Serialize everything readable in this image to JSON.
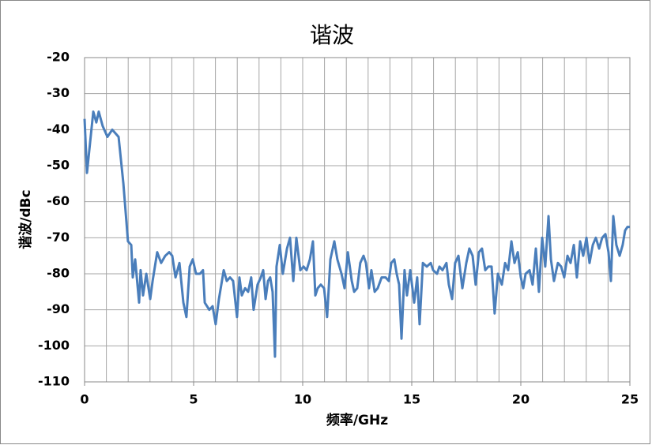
{
  "chart_data": {
    "type": "line",
    "title": "谐波",
    "x_label": "频率/GHz",
    "y_label": "谐波/dBc",
    "x": [
      0,
      0.11,
      0.4,
      0.54,
      0.65,
      0.83,
      1.05,
      1.27,
      1.56,
      1.78,
      1.99,
      2.14,
      2.21,
      2.32,
      2.5,
      2.57,
      2.68,
      2.83,
      3.01,
      3.12,
      3.33,
      3.51,
      3.7,
      3.88,
      4.02,
      4.17,
      4.35,
      4.53,
      4.67,
      4.82,
      4.96,
      5.11,
      5.29,
      5.43,
      5.51,
      5.72,
      5.87,
      6.01,
      6.16,
      6.38,
      6.52,
      6.67,
      6.81,
      6.99,
      7.1,
      7.21,
      7.36,
      7.5,
      7.64,
      7.75,
      7.93,
      8.08,
      8.19,
      8.3,
      8.41,
      8.51,
      8.62,
      8.73,
      8.8,
      8.95,
      9.09,
      9.28,
      9.42,
      9.57,
      9.71,
      9.89,
      10.04,
      10.18,
      10.33,
      10.47,
      10.58,
      10.69,
      10.83,
      10.98,
      11.12,
      11.27,
      11.45,
      11.59,
      11.78,
      11.92,
      12.07,
      12.25,
      12.36,
      12.5,
      12.64,
      12.79,
      12.9,
      13.04,
      13.15,
      13.3,
      13.44,
      13.62,
      13.8,
      13.95,
      14.06,
      14.2,
      14.31,
      14.42,
      14.53,
      14.67,
      14.78,
      14.93,
      15.11,
      15.25,
      15.36,
      15.51,
      15.69,
      15.87,
      15.98,
      16.16,
      16.27,
      16.41,
      16.59,
      16.7,
      16.85,
      16.99,
      17.14,
      17.32,
      17.5,
      17.64,
      17.79,
      17.93,
      18.08,
      18.22,
      18.37,
      18.51,
      18.66,
      18.8,
      18.95,
      19.13,
      19.28,
      19.42,
      19.57,
      19.71,
      19.86,
      20,
      20.11,
      20.22,
      20.4,
      20.54,
      20.69,
      20.83,
      20.98,
      21.12,
      21.27,
      21.38,
      21.52,
      21.7,
      21.85,
      21.99,
      22.14,
      22.28,
      22.43,
      22.57,
      22.72,
      22.86,
      23.01,
      23.15,
      23.3,
      23.44,
      23.59,
      23.73,
      23.88,
      24.02,
      24.13,
      24.24,
      24.38,
      24.53,
      24.67,
      24.78,
      24.89,
      25
    ],
    "series": [
      {
        "color": "#4a7ebb",
        "values": [
          -37,
          -52,
          -35,
          -38,
          -35,
          -39,
          -42,
          -40,
          -42,
          -55,
          -71,
          -72,
          -81,
          -76,
          -88,
          -79,
          -86,
          -80,
          -87,
          -82,
          -74,
          -77,
          -75,
          -74,
          -75,
          -81,
          -77,
          -88,
          -92,
          -78,
          -76,
          -80,
          -80,
          -79,
          -88,
          -90,
          -89,
          -94,
          -87,
          -79,
          -82,
          -81,
          -82,
          -92,
          -81,
          -86,
          -84,
          -85,
          -81,
          -90,
          -83,
          -81,
          -79,
          -87,
          -82,
          -81,
          -85,
          -103,
          -78,
          -72,
          -80,
          -73,
          -70,
          -82,
          -70,
          -79,
          -78,
          -79,
          -76,
          -71,
          -86,
          -84,
          -83,
          -84,
          -92,
          -76,
          -71,
          -76,
          -80,
          -84,
          -74,
          -82,
          -85,
          -84,
          -77,
          -75,
          -77,
          -84,
          -79,
          -85,
          -84,
          -81,
          -81,
          -82,
          -77,
          -76,
          -80,
          -83,
          -98,
          -79,
          -86,
          -79,
          -88,
          -81,
          -94,
          -77,
          -78,
          -77,
          -79,
          -80,
          -78,
          -79,
          -77,
          -83,
          -87,
          -77,
          -75,
          -84,
          -77,
          -73,
          -75,
          -83,
          -74,
          -73,
          -79,
          -78,
          -78,
          -91,
          -80,
          -83,
          -77,
          -79,
          -71,
          -77,
          -74,
          -81,
          -84,
          -80,
          -79,
          -83,
          -73,
          -85,
          -70,
          -78,
          -64,
          -76,
          -82,
          -77,
          -78,
          -81,
          -75,
          -77,
          -72,
          -81,
          -71,
          -75,
          -70,
          -77,
          -72,
          -70,
          -73,
          -70,
          -69,
          -74,
          -82,
          -64,
          -72,
          -75,
          -72,
          -68,
          -67,
          -67
        ]
      }
    ],
    "xlim": [
      0,
      25
    ],
    "xticks": [
      0,
      5,
      10,
      15,
      20,
      25
    ],
    "xgrid": [
      0,
      1,
      2,
      3,
      4,
      5,
      6,
      7,
      8,
      9,
      10,
      11,
      12,
      13,
      14,
      15,
      16,
      17,
      18,
      19,
      20,
      21,
      22,
      23,
      24,
      25
    ],
    "ylim": [
      -110,
      -20
    ],
    "yticks": [
      -110,
      -100,
      -90,
      -80,
      -70,
      -60,
      -50,
      -40,
      -30,
      -20
    ],
    "grid": true
  }
}
